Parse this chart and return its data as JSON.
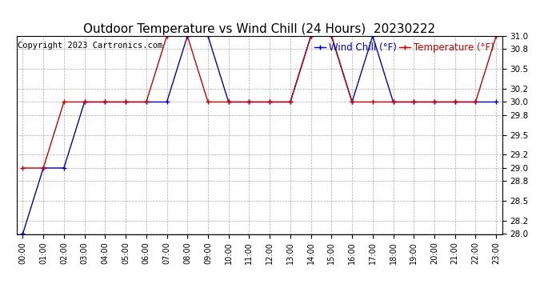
{
  "title": "Outdoor Temperature vs Wind Chill (24 Hours)  20230222",
  "copyright": "Copyright 2023 Cartronics.com",
  "legend_wind_chill": "Wind Chill (°F)",
  "legend_temperature": "Temperature (°F)",
  "ylim": [
    28.0,
    31.0
  ],
  "yticks": [
    28.0,
    28.2,
    28.5,
    28.8,
    29.0,
    29.2,
    29.5,
    29.8,
    30.0,
    30.2,
    30.5,
    30.8,
    31.0
  ],
  "xtick_labels": [
    "00:00",
    "01:00",
    "02:00",
    "03:00",
    "04:00",
    "05:00",
    "06:00",
    "07:00",
    "08:00",
    "09:00",
    "10:00",
    "11:00",
    "12:00",
    "13:00",
    "14:00",
    "15:00",
    "16:00",
    "17:00",
    "18:00",
    "19:00",
    "20:00",
    "21:00",
    "22:00",
    "23:00"
  ],
  "temperature_x": [
    0,
    1,
    2,
    3,
    4,
    5,
    6,
    7,
    8,
    9,
    10,
    11,
    12,
    13,
    14,
    15,
    16,
    17,
    18,
    19,
    20,
    21,
    22,
    23
  ],
  "temperature_y": [
    29.0,
    29.0,
    30.0,
    30.0,
    30.0,
    30.0,
    30.0,
    31.0,
    31.0,
    30.0,
    30.0,
    30.0,
    30.0,
    30.0,
    31.0,
    31.0,
    30.0,
    30.0,
    30.0,
    30.0,
    30.0,
    30.0,
    30.0,
    31.0
  ],
  "wind_chill_x": [
    0,
    1,
    2,
    3,
    4,
    5,
    6,
    7,
    8,
    9,
    10,
    11,
    12,
    13,
    14,
    15,
    16,
    17,
    18,
    19,
    20,
    21,
    22,
    23
  ],
  "wind_chill_y": [
    28.0,
    29.0,
    29.0,
    30.0,
    30.0,
    30.0,
    30.0,
    30.0,
    31.0,
    31.0,
    30.0,
    30.0,
    30.0,
    30.0,
    31.0,
    31.0,
    30.0,
    31.0,
    30.0,
    30.0,
    30.0,
    30.0,
    30.0,
    30.0
  ],
  "temp_color": "#cc0000",
  "wind_color": "#0000cc",
  "bg_color": "#ffffff",
  "plot_bg": "#ffffff",
  "grid_color": "#aaaaaa",
  "title_fontsize": 11,
  "copyright_fontsize": 7.5,
  "legend_fontsize": 8.5
}
